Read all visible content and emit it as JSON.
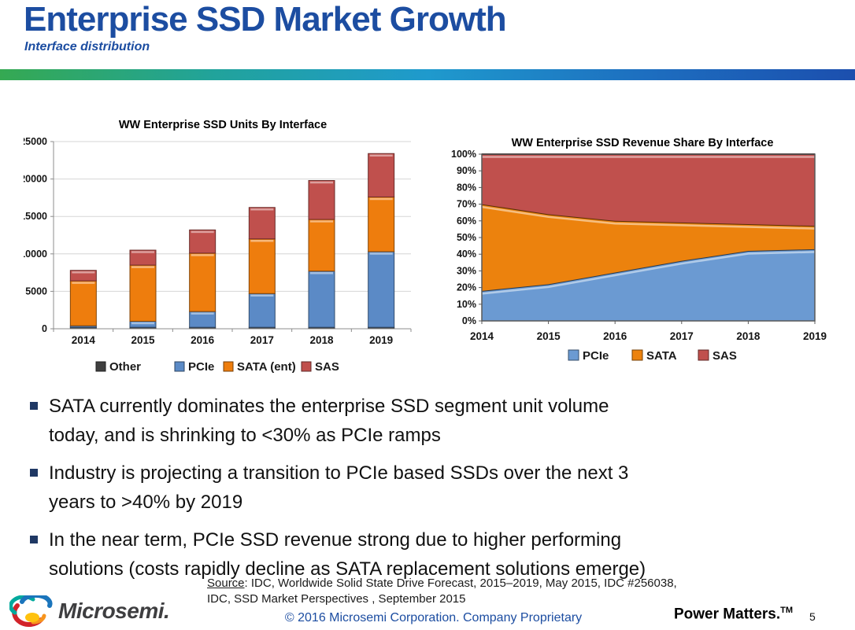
{
  "slide": {
    "title": "Enterprise SSD Market Growth",
    "subtitle": "Interface distribution"
  },
  "colors": {
    "title_blue": "#1C4DA1",
    "bullet_marker": "#1F3864",
    "footer_blue": "#1C4DA1",
    "accent_gradient": [
      "#35A952",
      "#21A39B",
      "#1F9ACD",
      "#1D6FC0",
      "#1C4FAE"
    ],
    "grid_line": "#D6D6D6",
    "axis_line": "#8C8C8C",
    "plot_frame": "#595959"
  },
  "chart_data": [
    {
      "type": "bar",
      "stacked": true,
      "title": "WW Enterprise SSD Units By Interface",
      "categories": [
        "2014",
        "2015",
        "2016",
        "2017",
        "2018",
        "2019"
      ],
      "series": [
        {
          "name": "Other",
          "color": "#3F3F3F",
          "values": [
            200,
            200,
            200,
            200,
            200,
            200
          ]
        },
        {
          "name": "PCIe",
          "color": "#5B8AC6",
          "values": [
            200,
            800,
            2100,
            4500,
            7500,
            10100
          ]
        },
        {
          "name": "SATA (ent)",
          "color": "#EE7D0D",
          "values": [
            6000,
            7500,
            7800,
            7300,
            6900,
            7300
          ]
        },
        {
          "name": "SAS",
          "color": "#C0504D",
          "values": [
            1400,
            2000,
            3100,
            4200,
            5200,
            5800
          ]
        }
      ],
      "xlabel": "",
      "ylabel": "",
      "ylim": [
        0,
        25000
      ],
      "ytick_step": 5000,
      "grid": "horizontal",
      "legend_position": "bottom"
    },
    {
      "type": "area",
      "stacked": true,
      "normalized": true,
      "title": "WW Enterprise SSD Revenue Share By Interface",
      "categories": [
        "2014",
        "2015",
        "2016",
        "2017",
        "2018",
        "2019"
      ],
      "series": [
        {
          "name": "PCIe",
          "color": "#6B9AD2",
          "values": [
            18,
            22,
            29,
            36,
            42,
            43
          ]
        },
        {
          "name": "SATA",
          "color": "#EC820D",
          "values": [
            52,
            42,
            31,
            23,
            16,
            14
          ]
        },
        {
          "name": "SAS",
          "color": "#C0504D",
          "values": [
            30,
            36,
            40,
            41,
            42,
            43
          ]
        }
      ],
      "xlabel": "",
      "ylabel": "",
      "ylim": [
        0,
        100
      ],
      "ytick_step": 10,
      "y_format": "percent",
      "grid": "off",
      "legend_position": "bottom"
    }
  ],
  "bullets": [
    {
      "lines": [
        "SATA currently dominates the enterprise SSD segment unit volume",
        "today, and is shrinking to <30% as PCIe ramps"
      ]
    },
    {
      "lines": [
        "Industry is projecting a transition to PCIe based SSDs over the next 3",
        "years to >40% by 2019"
      ]
    },
    {
      "lines": [
        "In the near term, PCIe SSD revenue strong due to higher performing",
        "solutions (costs rapidly decline as SATA replacement solutions emerge)"
      ]
    }
  ],
  "source": {
    "label": "Source",
    "line1_rest": ":  IDC, Worldwide Solid State Drive Forecast, 2015–2019,  May 2015, IDC #256038,",
    "line2": "IDC,  SSD Market Perspectives , September 2015"
  },
  "footer": {
    "brand": "Microsemi.",
    "copyright": "© 2016 Microsemi Corporation. Company Proprietary",
    "tagline": "Power Matters.",
    "tagline_sup": "TM",
    "page_number": "5"
  }
}
